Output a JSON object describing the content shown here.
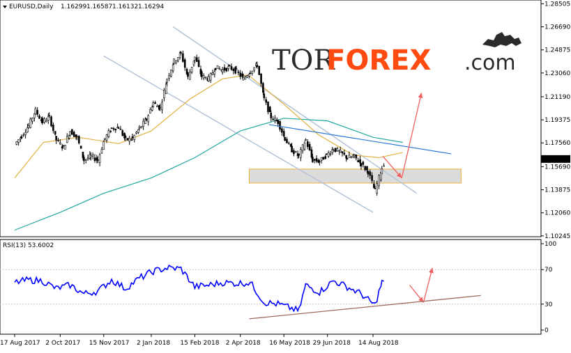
{
  "colors": {
    "background": "#ffffff",
    "axis": "#000000",
    "grid": "#c8c8c8",
    "candle": "#000000",
    "ma_slow": "#20a8a0",
    "ma_fast": "#e0b040",
    "channel": "#b4c4d8",
    "trendline": "#2878d8",
    "support_fill": "#dcdcdc",
    "support_border": "#f0b040",
    "arrow": "#f06060",
    "rsi_line": "#0000ff",
    "rsi_trendline": "#a06a5a",
    "price_tag_bg": "#000000",
    "price_tag_text": "#ffffff",
    "logo_accent": "#ff4a10",
    "logo_dark": "#2a2a2a"
  },
  "logo": {
    "part1": "TOR",
    "part2": "FOREX",
    "part3": ".com",
    "icon": "bull-bear-icon"
  },
  "chart_data": [
    {
      "type": "candlestick",
      "header": {
        "symbol": "EURUSD,Daily",
        "open": "1.16299",
        "high": "1.16587",
        "low": "1.16132",
        "close": "1.16294"
      },
      "last_price_label": "1.16294",
      "last_price": 1.16294,
      "ylim": [
        1.1018,
        1.288
      ],
      "y_ticks": [
        "1.28505",
        "1.26690",
        "1.24875",
        "1.23060",
        "1.21190",
        "1.19375",
        "1.17560",
        "1.15690",
        "1.13875",
        "1.12060",
        "1.10245"
      ],
      "x_tick_labels": [
        "17 Aug 2017",
        "2 Oct 2017",
        "15 Nov 2017",
        "2 Jan 2018",
        "15 Feb 2018",
        "2 Apr 2018",
        "16 May 2018",
        "29 Jun 2018",
        "14 Aug 2018"
      ],
      "series": [
        {
          "kind": "price",
          "type": "candlestick",
          "step_days": 1,
          "points": [
            [
              "2017-08-17",
              1.1745
            ],
            [
              "2017-08-24",
              1.181
            ],
            [
              "2017-08-31",
              1.189
            ],
            [
              "2017-09-07",
              1.201
            ],
            [
              "2017-09-14",
              1.192
            ],
            [
              "2017-09-21",
              1.196
            ],
            [
              "2017-09-28",
              1.178
            ],
            [
              "2017-10-05",
              1.172
            ],
            [
              "2017-10-12",
              1.185
            ],
            [
              "2017-10-19",
              1.18
            ],
            [
              "2017-10-26",
              1.162
            ],
            [
              "2017-11-02",
              1.165
            ],
            [
              "2017-11-09",
              1.162
            ],
            [
              "2017-11-16",
              1.179
            ],
            [
              "2017-11-23",
              1.187
            ],
            [
              "2017-11-30",
              1.188
            ],
            [
              "2017-12-07",
              1.178
            ],
            [
              "2017-12-14",
              1.179
            ],
            [
              "2017-12-21",
              1.187
            ],
            [
              "2017-12-28",
              1.194
            ],
            [
              "2018-01-04",
              1.207
            ],
            [
              "2018-01-11",
              1.203
            ],
            [
              "2018-01-18",
              1.226
            ],
            [
              "2018-01-25",
              1.24
            ],
            [
              "2018-02-01",
              1.246
            ],
            [
              "2018-02-08",
              1.227
            ],
            [
              "2018-02-15",
              1.243
            ],
            [
              "2018-02-22",
              1.228
            ],
            [
              "2018-03-01",
              1.226
            ],
            [
              "2018-03-08",
              1.235
            ],
            [
              "2018-03-15",
              1.233
            ],
            [
              "2018-03-22",
              1.235
            ],
            [
              "2018-03-29",
              1.232
            ],
            [
              "2018-04-05",
              1.226
            ],
            [
              "2018-04-12",
              1.232
            ],
            [
              "2018-04-19",
              1.237
            ],
            [
              "2018-04-26",
              1.21
            ],
            [
              "2018-05-03",
              1.196
            ],
            [
              "2018-05-10",
              1.192
            ],
            [
              "2018-05-17",
              1.179
            ],
            [
              "2018-05-24",
              1.17
            ],
            [
              "2018-05-31",
              1.165
            ],
            [
              "2018-06-07",
              1.178
            ],
            [
              "2018-06-14",
              1.162
            ],
            [
              "2018-06-21",
              1.161
            ],
            [
              "2018-06-28",
              1.166
            ],
            [
              "2018-07-05",
              1.171
            ],
            [
              "2018-07-12",
              1.168
            ],
            [
              "2018-07-19",
              1.164
            ],
            [
              "2018-07-26",
              1.165
            ],
            [
              "2018-08-02",
              1.159
            ],
            [
              "2018-08-09",
              1.153
            ],
            [
              "2018-08-16",
              1.138
            ],
            [
              "2018-08-23",
              1.156
            ],
            [
              "2018-08-30",
              1.168
            ],
            [
              "2018-09-06",
              1.164
            ],
            [
              "2018-09-13",
              1.1629
            ]
          ]
        },
        {
          "kind": "ma_slow",
          "type": "line",
          "points": [
            [
              "2017-08-17",
              1.107
            ],
            [
              "2017-10-02",
              1.121
            ],
            [
              "2017-11-15",
              1.136
            ],
            [
              "2018-01-02",
              1.148
            ],
            [
              "2018-02-15",
              1.164
            ],
            [
              "2018-04-02",
              1.185
            ],
            [
              "2018-05-16",
              1.195
            ],
            [
              "2018-06-29",
              1.193
            ],
            [
              "2018-08-14",
              1.18
            ],
            [
              "2018-09-13",
              1.176
            ]
          ]
        },
        {
          "kind": "ma_fast",
          "type": "line",
          "points": [
            [
              "2017-08-17",
              1.148
            ],
            [
              "2017-09-15",
              1.176
            ],
            [
              "2017-10-20",
              1.18
            ],
            [
              "2017-11-30",
              1.175
            ],
            [
              "2018-01-02",
              1.185
            ],
            [
              "2018-02-10",
              1.21
            ],
            [
              "2018-03-15",
              1.226
            ],
            [
              "2018-04-10",
              1.229
            ],
            [
              "2018-05-16",
              1.206
            ],
            [
              "2018-06-20",
              1.182
            ],
            [
              "2018-07-25",
              1.166
            ],
            [
              "2018-08-20",
              1.164
            ],
            [
              "2018-09-13",
              1.168
            ]
          ]
        }
      ],
      "annotations": [
        {
          "kind": "channel",
          "points": [
            [
              "2017-11-15",
              1.244
            ],
            [
              "2018-08-14",
              1.121
            ]
          ]
        },
        {
          "kind": "channel",
          "points": [
            [
              "2018-01-24",
              1.267
            ],
            [
              "2018-09-27",
              1.136
            ]
          ]
        },
        {
          "kind": "trendline",
          "points": [
            [
              "2018-05-01",
              1.19
            ],
            [
              "2018-11-01",
              1.167
            ]
          ]
        },
        {
          "kind": "support_zone",
          "points": [
            [
              "2018-04-11",
              1.155
            ],
            [
              "2018-11-11",
              1.144
            ]
          ]
        },
        {
          "kind": "arrow",
          "points": [
            [
              "2018-08-24",
              1.165
            ],
            [
              "2018-09-12",
              1.148
            ]
          ]
        },
        {
          "kind": "arrow",
          "points": [
            [
              "2018-09-12",
              1.148
            ],
            [
              "2018-10-02",
              1.215
            ]
          ]
        }
      ]
    },
    {
      "type": "line",
      "header": "RSI(13) 53.6002",
      "ylim": [
        0,
        100
      ],
      "y_ticks": [
        "100",
        "70",
        "30",
        "0"
      ],
      "levels": [
        70,
        30
      ],
      "series": [
        {
          "kind": "rsi",
          "type": "line",
          "points": [
            [
              "2017-08-17",
              55
            ],
            [
              "2017-08-31",
              58
            ],
            [
              "2017-09-14",
              57
            ],
            [
              "2017-09-28",
              48
            ],
            [
              "2017-10-12",
              52
            ],
            [
              "2017-10-26",
              42
            ],
            [
              "2017-11-09",
              45
            ],
            [
              "2017-11-23",
              58
            ],
            [
              "2017-12-07",
              48
            ],
            [
              "2017-12-21",
              60
            ],
            [
              "2018-01-04",
              68
            ],
            [
              "2018-01-18",
              72
            ],
            [
              "2018-02-01",
              71
            ],
            [
              "2018-02-15",
              50
            ],
            [
              "2018-03-01",
              52
            ],
            [
              "2018-03-15",
              55
            ],
            [
              "2018-03-29",
              54
            ],
            [
              "2018-04-12",
              55
            ],
            [
              "2018-04-26",
              32
            ],
            [
              "2018-05-10",
              30
            ],
            [
              "2018-05-24",
              25
            ],
            [
              "2018-05-31",
              22
            ],
            [
              "2018-06-07",
              52
            ],
            [
              "2018-06-21",
              44
            ],
            [
              "2018-07-05",
              57
            ],
            [
              "2018-07-19",
              50
            ],
            [
              "2018-08-02",
              42
            ],
            [
              "2018-08-09",
              35
            ],
            [
              "2018-08-16",
              29
            ],
            [
              "2018-08-23",
              55
            ],
            [
              "2018-08-30",
              59
            ],
            [
              "2018-09-06",
              52
            ],
            [
              "2018-09-13",
              53.6
            ]
          ]
        }
      ],
      "annotations": [
        {
          "kind": "rsi_trendline",
          "points": [
            [
              "2018-04-11",
              13
            ],
            [
              "2018-12-01",
              40
            ]
          ]
        },
        {
          "kind": "arrow",
          "points": [
            [
              "2018-09-20",
              52
            ],
            [
              "2018-10-04",
              32
            ]
          ]
        },
        {
          "kind": "arrow",
          "points": [
            [
              "2018-10-04",
              32
            ],
            [
              "2018-10-13",
              72
            ]
          ]
        }
      ]
    }
  ]
}
